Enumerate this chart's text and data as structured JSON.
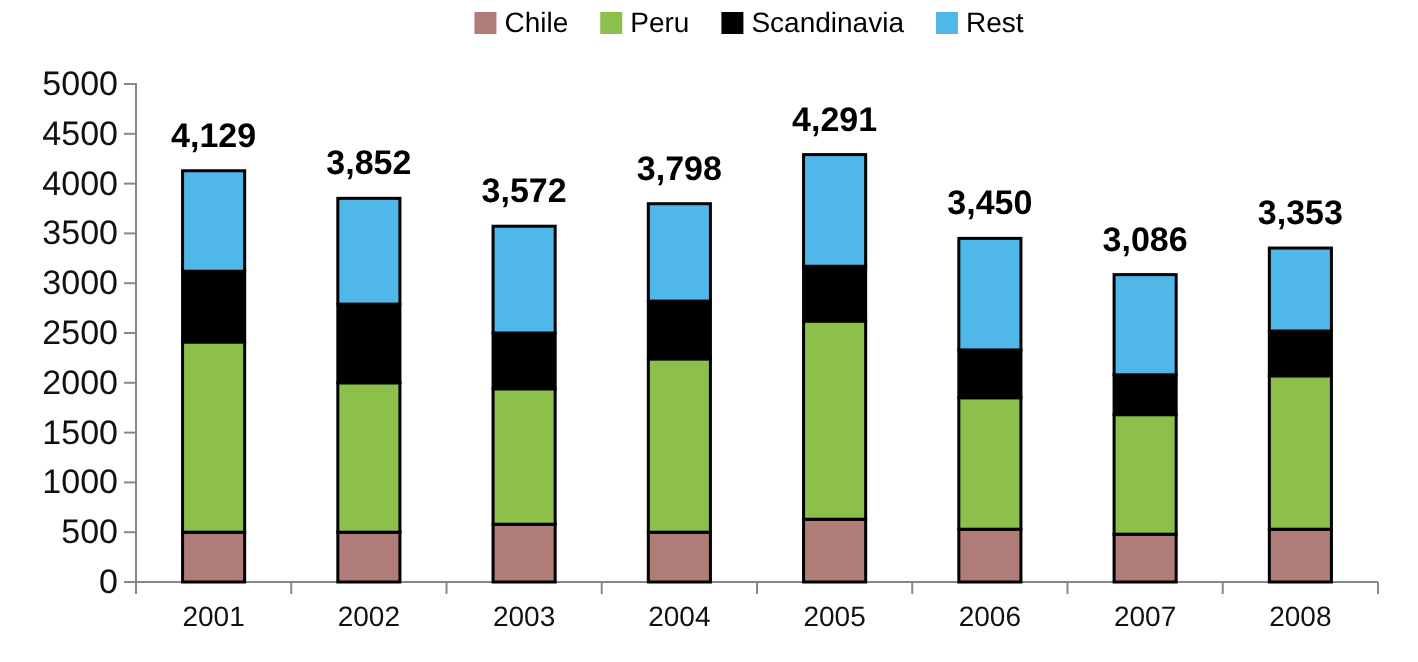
{
  "chart_data": {
    "type": "bar",
    "stacked": true,
    "categories": [
      "2001",
      "2002",
      "2003",
      "2004",
      "2005",
      "2006",
      "2007",
      "2008"
    ],
    "series": [
      {
        "name": "Chile",
        "color": "#b07c78",
        "values": [
          500,
          500,
          580,
          500,
          630,
          530,
          480,
          530
        ]
      },
      {
        "name": "Peru",
        "color": "#8cc04a",
        "values": [
          1910,
          1500,
          1360,
          1740,
          1990,
          1320,
          1200,
          1540
        ]
      },
      {
        "name": "Scandinavia",
        "color": "#000000",
        "values": [
          710,
          790,
          560,
          580,
          550,
          480,
          400,
          450
        ]
      },
      {
        "name": "Rest",
        "color": "#4fb8e8",
        "values": [
          1009,
          1062,
          1072,
          978,
          1121,
          1120,
          1006,
          833
        ]
      }
    ],
    "totals": [
      "4,129",
      "3,852",
      "3,572",
      "3,798",
      "4,291",
      "3,450",
      "3,086",
      "3,353"
    ],
    "ylim": [
      0,
      5000
    ],
    "yticks": [
      0,
      500,
      1000,
      1500,
      2000,
      2500,
      3000,
      3500,
      4000,
      4500,
      5000
    ],
    "grid": false,
    "legend": "top"
  }
}
